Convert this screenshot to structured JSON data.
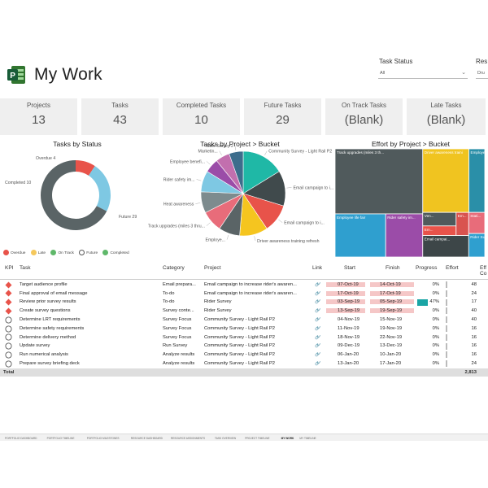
{
  "app": {
    "title": "My Work"
  },
  "filters": {
    "task_status": {
      "label": "Task Status",
      "value": "All"
    },
    "resource": {
      "label": "Res",
      "value": "Dru"
    }
  },
  "kpis": [
    {
      "label": "Projects",
      "value": "13"
    },
    {
      "label": "Tasks",
      "value": "43"
    },
    {
      "label": "Completed Tasks",
      "value": "10"
    },
    {
      "label": "Future Tasks",
      "value": "29"
    },
    {
      "label": "On Track Tasks",
      "value": "(Blank)"
    },
    {
      "label": "Late Tasks",
      "value": "(Blank)"
    }
  ],
  "charts": {
    "status_title": "Tasks by Status",
    "project_title": "Tasks by Project > Bucket",
    "effort_title": "Effort by Project > Bucket"
  },
  "chart_data": [
    {
      "type": "pie",
      "title": "Tasks by Status",
      "donut": true,
      "categories": [
        "Overdue",
        "Completed",
        "Future"
      ],
      "values": [
        4,
        10,
        29
      ],
      "slice_labels": [
        "Overdue 4",
        "Completed 10",
        "Future 29"
      ],
      "colors": [
        "#e8534a",
        "#7ec8e3",
        "#5a6466"
      ],
      "legend": [
        "Overdue",
        "Late",
        "On Track",
        "Future",
        "Completed"
      ],
      "legend_colors": [
        "#e8534a",
        "#f5c85c",
        "#5fb86a",
        "#ffffff",
        "#5fb86a"
      ],
      "legend_position": "bottom"
    },
    {
      "type": "pie",
      "title": "Tasks by Project > Bucket",
      "labels": [
        "Community Survey - Light Rail P2",
        "Email campaign to i...",
        "Email campaign to i...",
        "Driver awareness training refresh",
        "Employe...",
        "Track upgrades (miles 3 thru...",
        "Heat awareness",
        "Rider safety im...",
        "Employee benefi...",
        "Marketin...",
        "Rider Survey 2"
      ],
      "values": [
        6,
        5,
        4,
        4,
        3,
        3,
        3,
        3,
        2,
        2,
        2
      ],
      "colors": [
        "#1fb8a6",
        "#404a4c",
        "#e8534a",
        "#f5c51f",
        "#5a6466",
        "#e86c7a",
        "#7d8b8e",
        "#7ec8e3",
        "#9b4ca8",
        "#c26fae",
        "#3d6d8c"
      ]
    },
    {
      "type": "treemap",
      "title": "Effort by Project > Bucket",
      "labels": [
        "Track upgrades (miles 3 th...",
        "Employee life fair",
        "Rider safety im...",
        "Driver awareness training",
        "Employee ben...",
        "Ven...",
        "Em...",
        "Em...",
        "Email campai...",
        "Stati...",
        "Rider Survey"
      ],
      "values": [
        606,
        232,
        170,
        312,
        107,
        48,
        34,
        31,
        105,
        36,
        40
      ],
      "colors": [
        "#505a5c",
        "#2f9fcf",
        "#9b4ca8",
        "#f0c420",
        "#2a8fa8",
        "#4f5a5c",
        "#e8534a",
        "#d9534f",
        "#3d4648",
        "#e86c7a",
        "#2f9fcf"
      ]
    }
  ],
  "table": {
    "headers": {
      "kpi": "KPI",
      "task": "Task",
      "category": "Category",
      "project": "Project",
      "link": "Link",
      "start": "Start",
      "finish": "Finish",
      "progress": "Progress",
      "effort": "Effort",
      "extra": "Eff Co"
    },
    "rows": [
      {
        "status": "overdue",
        "task": "Target audience profile",
        "category": "Email prepara...",
        "project": "Email campaign to increase rider's awaren...",
        "start": "07-Oct-19",
        "finish": "14-Oct-19",
        "progress": "0%",
        "effort": "48",
        "late": true,
        "progress_fraction": 0
      },
      {
        "status": "overdue",
        "task": "Final approval of email message",
        "category": "To-do",
        "project": "Email campaign to increase rider's awaren...",
        "start": "17-Oct-19",
        "finish": "17-Oct-19",
        "progress": "0%",
        "effort": "24",
        "late": true,
        "progress_fraction": 0
      },
      {
        "status": "overdue",
        "task": "Review prior survey results",
        "category": "To-do",
        "project": "Rider Survey",
        "start": "03-Sep-19",
        "finish": "05-Sep-19",
        "progress": "47%",
        "effort": "17",
        "late": true,
        "progress_fraction": 0.47
      },
      {
        "status": "overdue",
        "task": "Create survey questions",
        "category": "Survey conte...",
        "project": "Rider Survey",
        "start": "13-Sep-19",
        "finish": "19-Sep-19",
        "progress": "0%",
        "effort": "40",
        "late": true,
        "progress_fraction": 0
      },
      {
        "status": "future",
        "task": "Determine LRT requirements",
        "category": "Survey Focus",
        "project": "Community Survey - Light Rail P2",
        "start": "04-Nov-19",
        "finish": "15-Nov-19",
        "progress": "0%",
        "effort": "40",
        "late": false,
        "progress_fraction": 0
      },
      {
        "status": "future",
        "task": "Determine safety requirements",
        "category": "Survey Focus",
        "project": "Community Survey - Light Rail P2",
        "start": "11-Nov-19",
        "finish": "19-Nov-19",
        "progress": "0%",
        "effort": "16",
        "late": false,
        "progress_fraction": 0
      },
      {
        "status": "future",
        "task": "Determine delivery method",
        "category": "Survey Focus",
        "project": "Community Survey - Light Rail P2",
        "start": "18-Nov-19",
        "finish": "22-Nov-19",
        "progress": "0%",
        "effort": "16",
        "late": false,
        "progress_fraction": 0
      },
      {
        "status": "future",
        "task": "Update survey",
        "category": "Run Survey",
        "project": "Community Survey - Light Rail P2",
        "start": "09-Dec-19",
        "finish": "13-Dec-19",
        "progress": "0%",
        "effort": "16",
        "late": false,
        "progress_fraction": 0
      },
      {
        "status": "future",
        "task": "Run numerical analysis",
        "category": "Analyze results",
        "project": "Community Survey - Light Rail P2",
        "start": "06-Jan-20",
        "finish": "10-Jan-20",
        "progress": "0%",
        "effort": "16",
        "late": false,
        "progress_fraction": 0
      },
      {
        "status": "future",
        "task": "Prepare survey briefing deck",
        "category": "Analyze results",
        "project": "Community Survey - Light Rail P2",
        "start": "13-Jan-20",
        "finish": "17-Jan-20",
        "progress": "0%",
        "effort": "24",
        "late": false,
        "progress_fraction": 0
      }
    ],
    "total_label": "Total",
    "total_effort": "2,813"
  },
  "tabs": [
    {
      "label": "PORTFOLIO DASHBOARD"
    },
    {
      "label": "PORTFOLIO TIMELINE"
    },
    {
      "label": "PORTFOLIO MILESTONES"
    },
    {
      "label": "RESOURCE DASHBOARD"
    },
    {
      "label": "RESOURCE ASSIGNMENTS"
    },
    {
      "label": "TASK OVERVIEW"
    },
    {
      "label": "PROJECT TIMELINE"
    },
    {
      "label": "MY WORK",
      "active": true
    },
    {
      "label": "MY TIMELINE"
    }
  ]
}
